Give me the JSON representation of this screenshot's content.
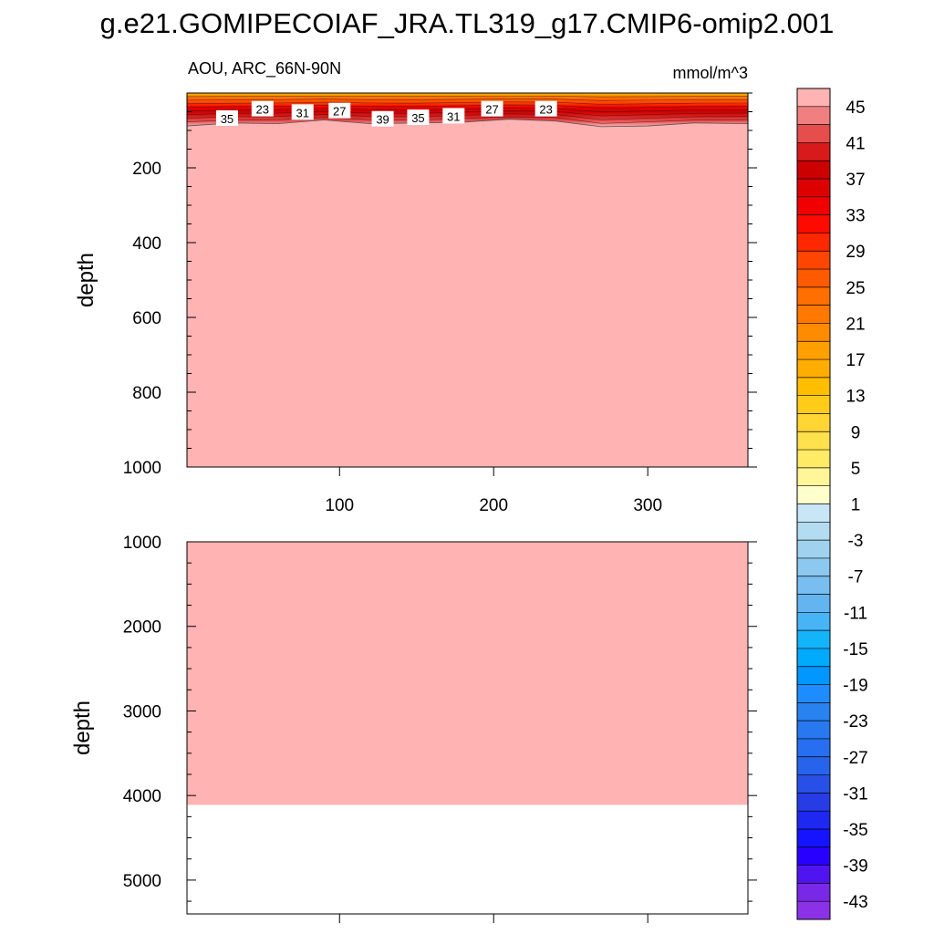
{
  "chart_data": {
    "type": "heatmap",
    "title": "g.e21.GOMIPECOIAF_JRA.TL319_g17.CMIP6-omip2.001",
    "subtitle_left": "AOU, ARC_66N-90N",
    "subtitle_right": "mmol/m^3",
    "ylabel": "depth",
    "xlabel": "",
    "x_range": [
      1,
      365
    ],
    "panels": [
      {
        "name": "upper",
        "ylim": [
          1000,
          0
        ],
        "yticks": [
          200,
          400,
          600,
          800,
          1000
        ],
        "xticks": [
          100,
          200,
          300
        ],
        "show_xtick_labels": true,
        "fill_value_below_gradient": 45,
        "seafloor_depth": null
      },
      {
        "name": "lower",
        "ylim": [
          5400,
          1000
        ],
        "yticks": [
          1000,
          2000,
          3000,
          4000,
          5000
        ],
        "xticks": [
          100,
          200,
          300
        ],
        "show_xtick_labels": false,
        "fill_value": 45,
        "seafloor_depth": 4110
      }
    ],
    "surface_gradient": {
      "description_values_mmol_m3": [
        13,
        45
      ],
      "top_depth": 0,
      "x": [
        1,
        30,
        60,
        90,
        120,
        150,
        180,
        210,
        240,
        270,
        300,
        330,
        365
      ],
      "bottom_depth": [
        88,
        80,
        82,
        72,
        82,
        80,
        78,
        70,
        75,
        90,
        88,
        80,
        82
      ]
    },
    "contour_labels": [
      {
        "text": "35",
        "x": 27,
        "depth": 68
      },
      {
        "text": "23",
        "x": 50,
        "depth": 43
      },
      {
        "text": "31",
        "x": 76,
        "depth": 52
      },
      {
        "text": "27",
        "x": 100,
        "depth": 48
      },
      {
        "text": "39",
        "x": 128,
        "depth": 70
      },
      {
        "text": "35",
        "x": 151,
        "depth": 66
      },
      {
        "text": "31",
        "x": 174,
        "depth": 62
      },
      {
        "text": "27",
        "x": 199,
        "depth": 43
      },
      {
        "text": "23",
        "x": 234,
        "depth": 43
      }
    ],
    "colorbar": {
      "levels": [
        45,
        43,
        41,
        39,
        37,
        35,
        33,
        31,
        29,
        27,
        25,
        23,
        21,
        19,
        17,
        15,
        13,
        11,
        9,
        7,
        5,
        3,
        1,
        -1,
        -3,
        -5,
        -7,
        -9,
        -11,
        -13,
        -15,
        -17,
        -19,
        -21,
        -23,
        -25,
        -27,
        -29,
        -31,
        -33,
        -35,
        -37,
        -39,
        -41,
        -43
      ],
      "labels": [
        "45",
        "41",
        "37",
        "33",
        "29",
        "25",
        "21",
        "17",
        "13",
        "9",
        "5",
        "1",
        "-3",
        "-7",
        "-11",
        "-15",
        "-19",
        "-23",
        "-27",
        "-31",
        "-35",
        "-39",
        "-43"
      ],
      "colors": [
        "#ffb3b3",
        "#f08080",
        "#e64d4d",
        "#d91a1a",
        "#cc0000",
        "#dd0000",
        "#f00000",
        "#ff0a00",
        "#ff2800",
        "#ff4600",
        "#ff5a00",
        "#ff6e00",
        "#ff7800",
        "#ff8c00",
        "#ffa000",
        "#ffad00",
        "#ffbe00",
        "#ffcc1a",
        "#ffd633",
        "#ffe04d",
        "#ffeb66",
        "#fff599",
        "#ffffcc",
        "#c8e6f5",
        "#b4dcf0",
        "#a0d2f0",
        "#8cc8f0",
        "#78bef0",
        "#64b4f0",
        "#46b4f5",
        "#14b4fa",
        "#00aaff",
        "#0096ff",
        "#1e8cff",
        "#2882f0",
        "#2878f0",
        "#286ef0",
        "#2864eb",
        "#2850e6",
        "#283ce6",
        "#1e28f0",
        "#1414ff",
        "#2800ff",
        "#5014f0",
        "#7828e6",
        "#8c32e6"
      ]
    }
  }
}
